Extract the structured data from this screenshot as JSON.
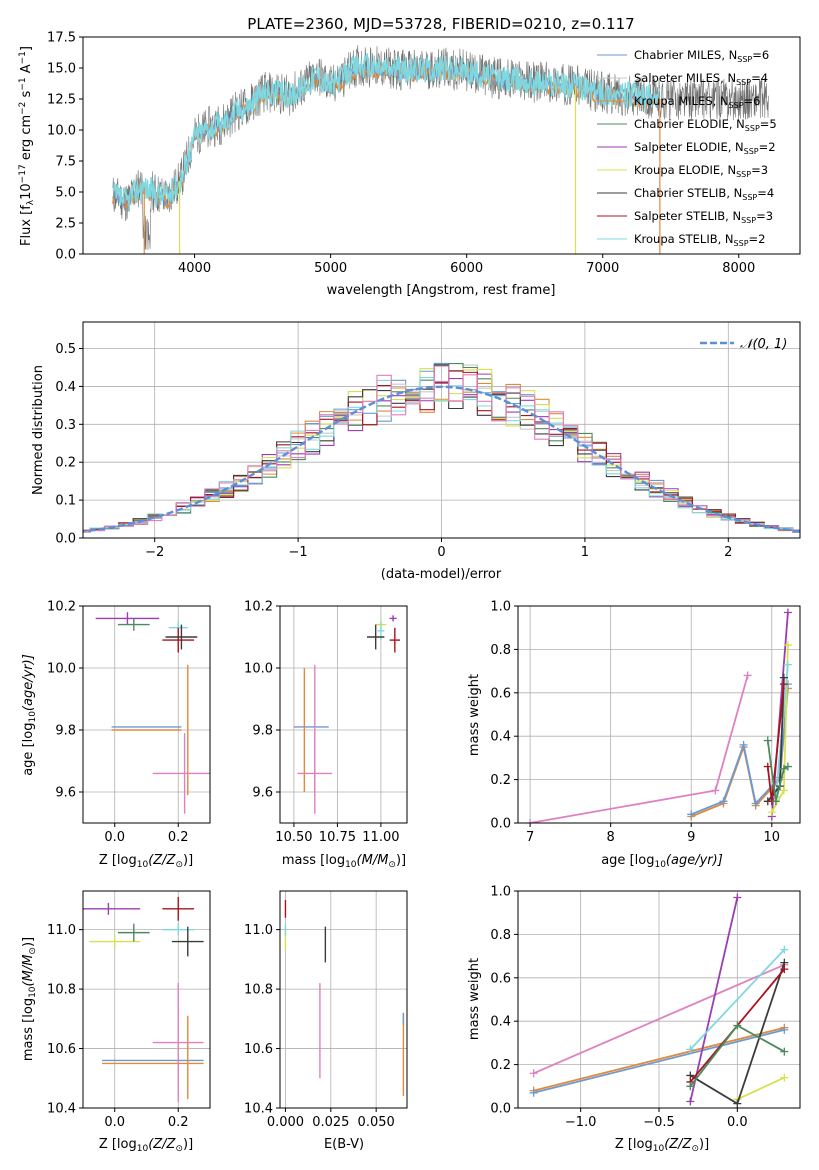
{
  "title": "PLATE=2360, MJD=53728, FIBERID=0210, z=0.117",
  "colors": {
    "chabrier_miles": "#6b9ad2",
    "salpeter_miles": "#c9c9c9",
    "kroupa_miles": "#e08a3c",
    "chabrier_elodie": "#4e8a5f",
    "salpeter_elodie": "#9a3fb0",
    "kroupa_elodie": "#d8e050",
    "chabrier_stelib": "#3c3c3c",
    "salpeter_stelib": "#a8141e",
    "kroupa_stelib": "#7fd8e0",
    "pink": "#e080c0",
    "grey": "#707070",
    "gauss": "#5b8fd8"
  },
  "spectrum": {
    "xlabel": "wavelength [Angstrom, rest frame]",
    "ylabel_main": "Flux [f",
    "ylabel_sub": "λ",
    "ylabel_rest": "10",
    "ylabel_exp": "−17",
    "ylabel_units": " erg cm",
    "ylabel_exp2": "−2",
    "ylabel_units2": " s",
    "ylabel_exp3": "−1",
    "ylabel_units3": " A",
    "ylabel_exp4": "−1",
    "ylabel_end": "]",
    "legend": [
      {
        "name": "Chabrier MILES, N",
        "sub": "SSP",
        "tail": "=6",
        "color": "#6b9ad2"
      },
      {
        "name": "Salpeter MILES, N",
        "sub": "SSP",
        "tail": "=4",
        "color": "#c9c9c9"
      },
      {
        "name": "Kroupa MILES, N",
        "sub": "SSP",
        "tail": "=6",
        "color": "#e08a3c"
      },
      {
        "name": "Chabrier ELODIE, N",
        "sub": "SSP",
        "tail": "=5",
        "color": "#4e8a5f"
      },
      {
        "name": "Salpeter ELODIE, N",
        "sub": "SSP",
        "tail": "=2",
        "color": "#9a3fb0"
      },
      {
        "name": "Kroupa ELODIE, N",
        "sub": "SSP",
        "tail": "=3",
        "color": "#d8e050"
      },
      {
        "name": "Chabrier STELIB, N",
        "sub": "SSP",
        "tail": "=4",
        "color": "#3c3c3c"
      },
      {
        "name": "Salpeter STELIB, N",
        "sub": "SSP",
        "tail": "=3",
        "color": "#a8141e"
      },
      {
        "name": "Kroupa STELIB, N",
        "sub": "SSP",
        "tail": "=2",
        "color": "#7fd8e0"
      }
    ]
  },
  "hist": {
    "xlabel": "(data-model)/error",
    "ylabel": "Normed distribution",
    "legend": "𝒩(0, 1)"
  },
  "p_age_z": {
    "xlabel_pre": "Z [log",
    "xlabel_sub": "10",
    "xlabel_post": "(Z/Z",
    "xlabel_sun": "⊙",
    "xlabel_end": ")]",
    "ylabel_pre": "age  [log",
    "ylabel_sub": "10",
    "ylabel_post": "(age/yr)]"
  },
  "p_age_mass": {
    "xlabel_pre": "mass [log",
    "xlabel_sub": "10",
    "xlabel_post": "(M/M",
    "xlabel_sun": "⊙",
    "xlabel_end": ")]"
  },
  "p_mw_age": {
    "xlabel_pre": "age  [log",
    "xlabel_sub": "10",
    "xlabel_post": "(age/yr)]",
    "ylabel": "mass weight"
  },
  "p_mass_z": {
    "xlabel_pre": "Z [log",
    "xlabel_sub": "10",
    "xlabel_post": "(Z/Z",
    "xlabel_sun": "⊙",
    "xlabel_end": ")]",
    "ylabel_pre": "mass [log",
    "ylabel_sub": "10",
    "ylabel_post": "(M/M",
    "ylabel_sun": "⊙",
    "ylabel_end": ")]"
  },
  "p_mass_ebv": {
    "xlabel": "E(B-V)"
  },
  "p_mw_z": {
    "xlabel_pre": "Z [log",
    "xlabel_sub": "10",
    "xlabel_post": "(Z/Z",
    "xlabel_sun": "⊙",
    "xlabel_end": ")]",
    "ylabel": "mass weight"
  },
  "chart_data": [
    {
      "type": "line",
      "panel": "spectrum",
      "title": "PLATE=2360, MJD=53728, FIBERID=0210, z=0.117",
      "xlim": [
        3180,
        8450
      ],
      "ylim": [
        0,
        17.5
      ],
      "xticks": [
        4000,
        5000,
        6000,
        7000,
        8000
      ],
      "yticks": [
        0.0,
        2.5,
        5.0,
        7.5,
        10.0,
        12.5,
        15.0,
        17.5
      ],
      "grid": false,
      "legend_position": "top-right",
      "series_approx": {
        "x": [
          3400,
          3500,
          3600,
          3700,
          3800,
          3900,
          4000,
          4100,
          4200,
          4300,
          4400,
          4500,
          4600,
          4700,
          4800,
          4900,
          5000,
          5200,
          5400,
          5600,
          5800,
          6000,
          6200,
          6400,
          6600,
          6800,
          7000,
          7200,
          7400
        ],
        "y": [
          4.8,
          4.2,
          5.5,
          5.0,
          4.6,
          6.0,
          9.5,
          10.2,
          10.5,
          11.5,
          12.0,
          13.0,
          13.0,
          12.8,
          13.5,
          14.5,
          13.5,
          15.2,
          15.0,
          14.8,
          15.0,
          14.8,
          14.2,
          14.0,
          13.8,
          13.6,
          13.0,
          12.8,
          12.5
        ]
      }
    },
    {
      "type": "bar",
      "panel": "residual-histogram",
      "xlim": [
        -2.5,
        2.5
      ],
      "ylim": [
        0,
        0.57
      ],
      "xticks": [
        -2,
        -1,
        0,
        1,
        2
      ],
      "yticks": [
        0.0,
        0.1,
        0.2,
        0.3,
        0.4,
        0.5
      ],
      "grid": true,
      "legend_position": "top-right",
      "bin_width": 0.1,
      "gaussian": {
        "mean": 0,
        "sigma": 1
      }
    },
    {
      "type": "scatter",
      "panel": "age-vs-Z",
      "xlim": [
        -0.1,
        0.3
      ],
      "ylim": [
        9.5,
        10.2
      ],
      "xticks": [
        0.0,
        0.2
      ],
      "yticks": [
        9.6,
        9.8,
        10.0,
        10.2
      ],
      "grid": true,
      "points": [
        {
          "x": 0.04,
          "y": 10.16,
          "xerr": 0.1,
          "yerr": 0.02,
          "color": "#9a3fb0"
        },
        {
          "x": 0.06,
          "y": 10.14,
          "xerr": 0.05,
          "yerr": 0.02,
          "color": "#4e8a5f"
        },
        {
          "x": 0.2,
          "y": 10.13,
          "xerr": 0.03,
          "yerr": 0.02,
          "color": "#7fd8e0"
        },
        {
          "x": 0.2,
          "y": 10.09,
          "xerr": 0.05,
          "yerr": 0.04,
          "color": "#a8141e"
        },
        {
          "x": 0.21,
          "y": 10.1,
          "xerr": 0.05,
          "yerr": 0.04,
          "color": "#3c3c3c"
        },
        {
          "x": 0.1,
          "y": 9.81,
          "xerr": 0.11,
          "yerr": 0.0,
          "color": "#6b9ad2"
        },
        {
          "x": 0.1,
          "y": 9.8,
          "xerr": 0.11,
          "yerr": 0.0,
          "color": "#e08a3c"
        },
        {
          "x": 0.23,
          "y": 9.8,
          "xerr": 0.0,
          "yerr": 0.21,
          "color": "#e08a3c"
        },
        {
          "x": 0.22,
          "y": 9.66,
          "xerr": 0.1,
          "yerr": 0.13,
          "color": "#e080c0"
        }
      ]
    },
    {
      "type": "scatter",
      "panel": "age-vs-mass",
      "xlim": [
        10.42,
        11.15
      ],
      "ylim": [
        9.5,
        10.2
      ],
      "xticks": [
        10.5,
        10.75,
        11.0
      ],
      "yticks": [
        9.6,
        9.8,
        10.0,
        10.2
      ],
      "grid": true,
      "points": [
        {
          "x": 11.0,
          "y": 10.14,
          "xerr": 0.03,
          "yerr": 0.02,
          "color": "#d8e050"
        },
        {
          "x": 11.07,
          "y": 10.16,
          "xerr": 0.02,
          "yerr": 0.01,
          "color": "#9a3fb0"
        },
        {
          "x": 11.0,
          "y": 10.12,
          "xerr": 0.02,
          "yerr": 0.03,
          "color": "#7fd8e0"
        },
        {
          "x": 10.97,
          "y": 10.1,
          "xerr": 0.05,
          "yerr": 0.04,
          "color": "#3c3c3c"
        },
        {
          "x": 11.08,
          "y": 10.09,
          "xerr": 0.03,
          "yerr": 0.04,
          "color": "#a8141e"
        },
        {
          "x": 10.6,
          "y": 9.81,
          "xerr": 0.1,
          "yerr": 0.0,
          "color": "#6b9ad2"
        },
        {
          "x": 10.56,
          "y": 9.8,
          "xerr": 0.0,
          "yerr": 0.2,
          "color": "#e08a3c"
        },
        {
          "x": 10.62,
          "y": 9.8,
          "xerr": 0.0,
          "yerr": 0.21,
          "color": "#e080c0"
        },
        {
          "x": 10.62,
          "y": 9.66,
          "xerr": 0.1,
          "yerr": 0.13,
          "color": "#e080c0"
        }
      ]
    },
    {
      "type": "line",
      "panel": "mass-weight-vs-age",
      "xlim": [
        6.85,
        10.35
      ],
      "ylim": [
        0,
        1
      ],
      "xticks": [
        7,
        8,
        9,
        10
      ],
      "yticks": [
        0.0,
        0.2,
        0.4,
        0.6,
        0.8,
        1.0
      ],
      "grid": true,
      "series": [
        {
          "color": "#e080c0",
          "x": [
            7.0,
            9.3,
            9.7
          ],
          "y": [
            0.0,
            0.15,
            0.68
          ]
        },
        {
          "color": "#e08a3c",
          "x": [
            9.0,
            9.4,
            9.65,
            9.8,
            10.1,
            10.2
          ],
          "y": [
            0.03,
            0.09,
            0.35,
            0.08,
            0.2,
            0.62
          ]
        },
        {
          "color": "#6b9ad2",
          "x": [
            9.0,
            9.4,
            9.65,
            9.8,
            10.1,
            10.2
          ],
          "y": [
            0.04,
            0.1,
            0.36,
            0.09,
            0.21,
            0.64
          ]
        },
        {
          "color": "#9a3fb0",
          "x": [
            10.0,
            10.2
          ],
          "y": [
            0.03,
            0.97
          ]
        },
        {
          "color": "#d8e050",
          "x": [
            10.0,
            10.15,
            10.2
          ],
          "y": [
            0.05,
            0.15,
            0.82
          ]
        },
        {
          "color": "#7fd8e0",
          "x": [
            10.05,
            10.2
          ],
          "y": [
            0.12,
            0.73
          ]
        },
        {
          "color": "#3c3c3c",
          "x": [
            9.95,
            10.1,
            10.15
          ],
          "y": [
            0.1,
            0.17,
            0.67
          ]
        },
        {
          "color": "#a8141e",
          "x": [
            9.95,
            10.0,
            10.15
          ],
          "y": [
            0.26,
            0.1,
            0.64
          ]
        },
        {
          "color": "#4e8a5f",
          "x": [
            9.95,
            10.05,
            10.15,
            10.2
          ],
          "y": [
            0.38,
            0.1,
            0.25,
            0.26
          ]
        }
      ]
    },
    {
      "type": "scatter",
      "panel": "mass-vs-Z",
      "xlim": [
        -0.1,
        0.3
      ],
      "ylim": [
        10.4,
        11.13
      ],
      "xticks": [
        0.0,
        0.2
      ],
      "yticks": [
        10.4,
        10.6,
        10.8,
        11.0
      ],
      "grid": true,
      "points": [
        {
          "x": -0.02,
          "y": 11.07,
          "xerr": 0.1,
          "yerr": 0.02,
          "color": "#9a3fb0"
        },
        {
          "x": 0.0,
          "y": 10.96,
          "xerr": 0.08,
          "yerr": 0.02,
          "color": "#d8e050"
        },
        {
          "x": 0.06,
          "y": 10.99,
          "xerr": 0.05,
          "yerr": 0.03,
          "color": "#4e8a5f"
        },
        {
          "x": 0.2,
          "y": 11.07,
          "xerr": 0.05,
          "yerr": 0.04,
          "color": "#a8141e"
        },
        {
          "x": 0.2,
          "y": 11.0,
          "xerr": 0.05,
          "yerr": 0.02,
          "color": "#7fd8e0"
        },
        {
          "x": 0.23,
          "y": 10.96,
          "xerr": 0.05,
          "yerr": 0.05,
          "color": "#3c3c3c"
        },
        {
          "x": 0.12,
          "y": 10.56,
          "xerr": 0.16,
          "yerr": 0.0,
          "color": "#6b9ad2"
        },
        {
          "x": 0.12,
          "y": 10.55,
          "xerr": 0.16,
          "yerr": 0.0,
          "color": "#e08a3c"
        },
        {
          "x": 0.23,
          "y": 10.57,
          "xerr": 0.0,
          "yerr": 0.14,
          "color": "#e08a3c"
        },
        {
          "x": 0.2,
          "y": 10.62,
          "xerr": 0.08,
          "yerr": 0.2,
          "color": "#e080c0"
        }
      ]
    },
    {
      "type": "scatter",
      "panel": "mass-vs-EBV",
      "xlim": [
        -0.003,
        0.067
      ],
      "ylim": [
        10.4,
        11.13
      ],
      "xticks": [
        0.0,
        0.025,
        0.05
      ],
      "yticks": [
        10.4,
        10.6,
        10.8,
        11.0
      ],
      "grid": true,
      "points": [
        {
          "x": 0.0,
          "y": 11.07,
          "xerr": 0,
          "yerr": 0.03,
          "color": "#a8141e"
        },
        {
          "x": 0.0,
          "y": 10.97,
          "xerr": 0,
          "yerr": 0.04,
          "color": "#d8e050"
        },
        {
          "x": 0.0,
          "y": 11.0,
          "xerr": 0,
          "yerr": 0.02,
          "color": "#7fd8e0"
        },
        {
          "x": 0.022,
          "y": 10.95,
          "xerr": 0,
          "yerr": 0.06,
          "color": "#3c3c3c"
        },
        {
          "x": 0.019,
          "y": 10.66,
          "xerr": 0,
          "yerr": 0.16,
          "color": "#e080c0"
        },
        {
          "x": 0.065,
          "y": 10.58,
          "xerr": 0,
          "yerr": 0.14,
          "color": "#e08a3c"
        },
        {
          "x": 0.065,
          "y": 10.7,
          "xerr": 0,
          "yerr": 0.02,
          "color": "#6b9ad2"
        }
      ]
    },
    {
      "type": "line",
      "panel": "mass-weight-vs-Z",
      "xlim": [
        -1.4,
        0.4
      ],
      "ylim": [
        0,
        1
      ],
      "xticks": [
        -1.0,
        -0.5,
        0.0
      ],
      "yticks": [
        0.0,
        0.2,
        0.4,
        0.6,
        0.8,
        1.0
      ],
      "grid": true,
      "series": [
        {
          "color": "#e08a3c",
          "x": [
            -1.3,
            0.3
          ],
          "y": [
            0.08,
            0.37
          ]
        },
        {
          "color": "#6b9ad2",
          "x": [
            -1.3,
            0.3
          ],
          "y": [
            0.07,
            0.36
          ]
        },
        {
          "color": "#e080c0",
          "x": [
            -1.3,
            0.3
          ],
          "y": [
            0.16,
            0.66
          ]
        },
        {
          "color": "#9a3fb0",
          "x": [
            -0.3,
            0.0
          ],
          "y": [
            0.03,
            0.97
          ]
        },
        {
          "color": "#d8e050",
          "x": [
            0.0,
            0.3
          ],
          "y": [
            0.04,
            0.14
          ]
        },
        {
          "color": "#7fd8e0",
          "x": [
            -0.3,
            0.3
          ],
          "y": [
            0.27,
            0.73
          ]
        },
        {
          "color": "#3c3c3c",
          "x": [
            -0.3,
            0.0,
            0.3
          ],
          "y": [
            0.15,
            0.02,
            0.67
          ]
        },
        {
          "color": "#a8141e",
          "x": [
            -0.3,
            0.3
          ],
          "y": [
            0.12,
            0.64
          ]
        },
        {
          "color": "#4e8a5f",
          "x": [
            -0.3,
            0.0,
            0.3
          ],
          "y": [
            0.1,
            0.38,
            0.26
          ]
        }
      ]
    }
  ]
}
